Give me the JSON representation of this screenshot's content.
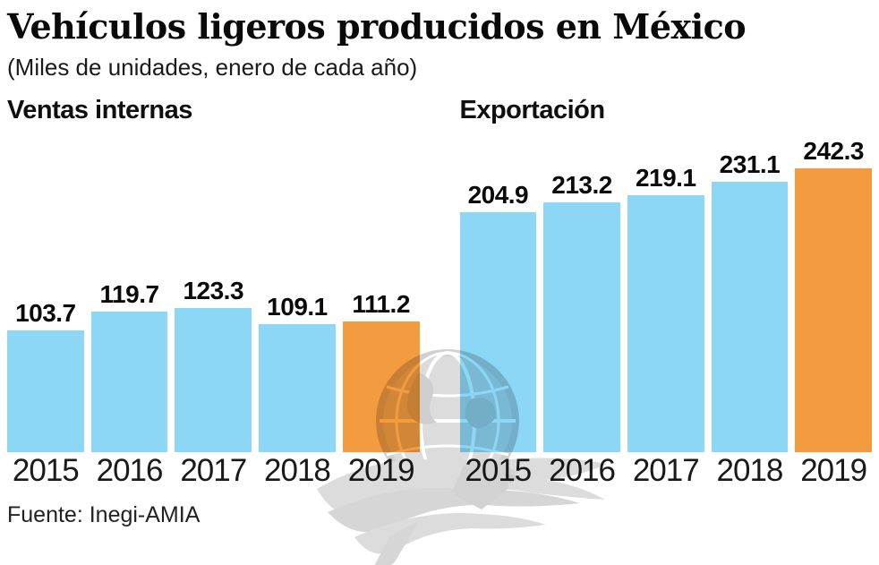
{
  "page": {
    "title": "Vehículos ligeros producidos en México",
    "subtitle": "(Miles de unidades, enero de cada año)",
    "source": "Fuente: Inegi-AMIA"
  },
  "colors": {
    "bar_default": "#8DD7F6",
    "bar_highlight": "#F39C3F",
    "text": "#111111",
    "watermark_gray": "#DCDCDC"
  },
  "watermark": {
    "name": "eagle-globe-logo"
  },
  "chart_data": [
    {
      "type": "bar",
      "title": "Ventas internas",
      "categories": [
        "2015",
        "2016",
        "2017",
        "2018",
        "2019"
      ],
      "values": [
        103.7,
        119.7,
        123.3,
        109.1,
        111.2
      ],
      "highlight_category": "2019",
      "unit": "miles de unidades",
      "xlabel": "",
      "ylabel": "",
      "ylim": [
        0,
        272
      ],
      "grid": false,
      "legend": false,
      "value_labels": true
    },
    {
      "type": "bar",
      "title": "Exportación",
      "categories": [
        "2015",
        "2016",
        "2017",
        "2018",
        "2019"
      ],
      "values": [
        204.9,
        213.2,
        219.1,
        231.1,
        242.3
      ],
      "highlight_category": "2019",
      "unit": "miles de unidades",
      "xlabel": "",
      "ylabel": "",
      "ylim": [
        0,
        272
      ],
      "grid": false,
      "legend": false,
      "value_labels": true
    }
  ]
}
